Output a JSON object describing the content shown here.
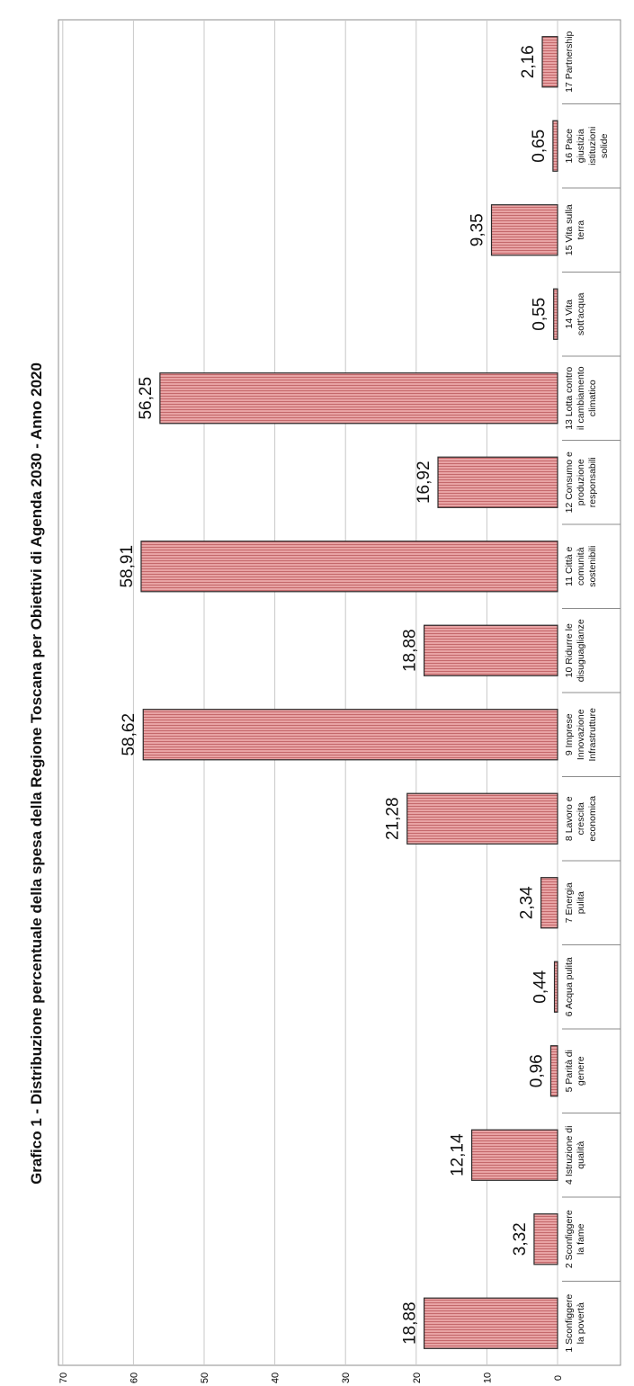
{
  "chart_data": {
    "type": "bar",
    "orientation": "vertical bars, image rotated 90 degrees counter-clockwise",
    "title": "Grafico 1 - Distribuzione percentuale della spesa della Regione Toscana per Obiettivi di Agenda 2030 - Anno 2020",
    "xlabel": "",
    "ylabel": "",
    "ylim": [
      0,
      70
    ],
    "yticks": [
      "0",
      "10",
      "20",
      "30",
      "40",
      "50",
      "60",
      "70"
    ],
    "grid": true,
    "legend": "none",
    "bar_color": "#e4999a",
    "bar_stripe_color": "#c46a6c",
    "categories": [
      [
        "1 Sconfiggere",
        "la povertà"
      ],
      [
        "2 Sconfiggere",
        "la fame"
      ],
      [
        "4 Istruzione di",
        "qualità"
      ],
      [
        "5 Parità di",
        "genere"
      ],
      [
        "6 Acqua pulita"
      ],
      [
        "7 Energia",
        "pulita"
      ],
      [
        "8 Lavoro  e",
        "crescita",
        "economica"
      ],
      [
        "9 Imprese",
        "Innovazione",
        "Infrastrutture"
      ],
      [
        "10 Ridurre le",
        "disuguaglianze"
      ],
      [
        "11 Città e",
        "comunità",
        "sostenibili"
      ],
      [
        "12 Consumo e",
        "produzione",
        "responsabili"
      ],
      [
        "13 Lotta contro",
        "il cambiamento",
        "climatico"
      ],
      [
        "14 Vita",
        "sott'acqua"
      ],
      [
        "15 Vita sulla",
        "terra"
      ],
      [
        "16 Pace",
        "giustizia",
        "istituzioni",
        "solide"
      ],
      [
        "17 Partnership"
      ]
    ],
    "values": [
      18.88,
      3.32,
      12.14,
      0.96,
      0.44,
      2.34,
      21.28,
      58.62,
      18.88,
      58.91,
      16.92,
      56.25,
      0.55,
      9.35,
      0.65,
      2.16
    ],
    "data_labels": [
      "18,88",
      "3,32",
      "12,14",
      "0,96",
      "0,44",
      "2,34",
      "21,28",
      "58,62",
      "18,88",
      "58,91",
      "16,92",
      "56,25",
      "0,55",
      "9,35",
      "0,65",
      "2,16"
    ]
  }
}
